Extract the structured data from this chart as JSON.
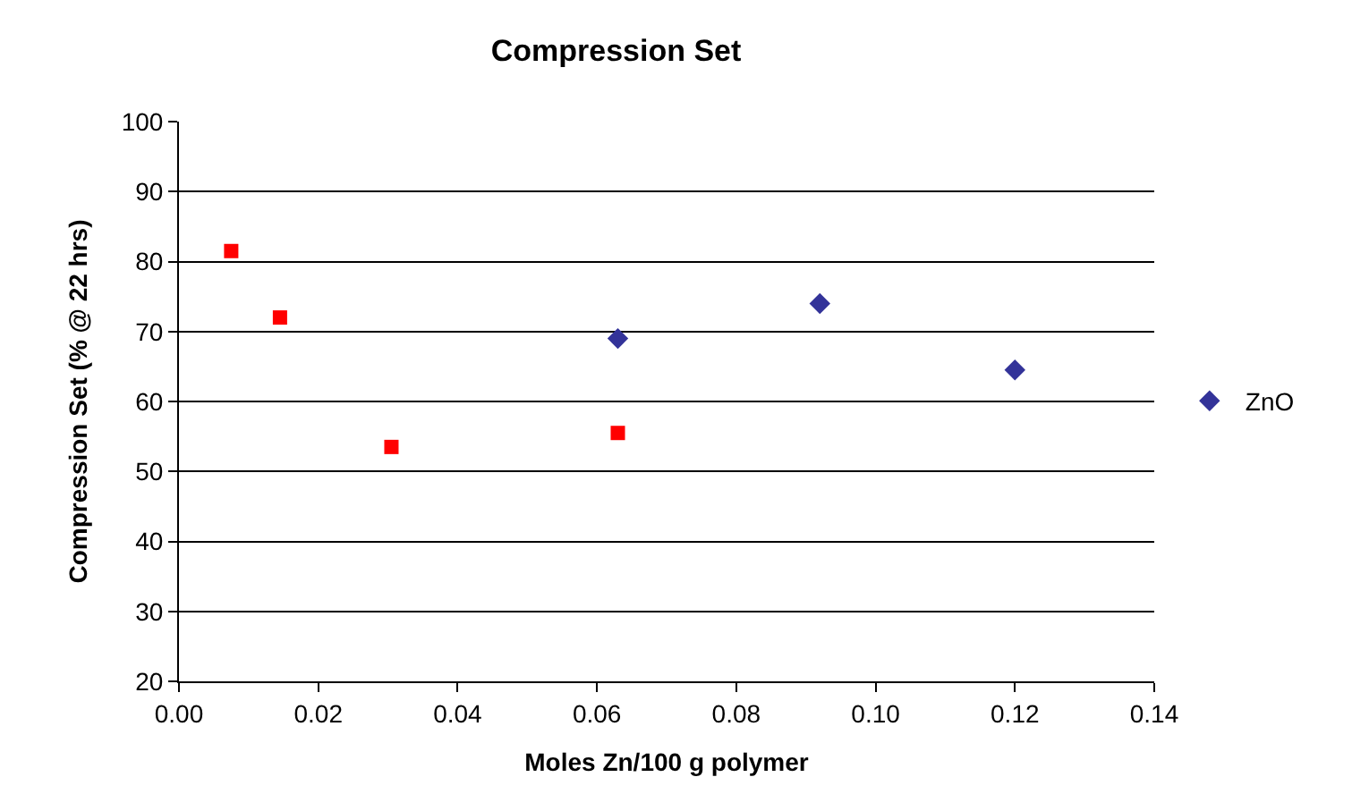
{
  "chart_data": {
    "type": "scatter",
    "title": "Compression Set",
    "xlabel": "Moles Zn/100 g polymer",
    "ylabel": "Compression Set (% @ 22 hrs)",
    "series": [
      {
        "color": "#ff0000",
        "marker": "square",
        "x": [
          0.0075,
          0.0145,
          0.0305,
          0.063
        ],
        "values": [
          81.5,
          72,
          53.5,
          55.5
        ]
      },
      {
        "name": "ZnO",
        "color": "#333399",
        "marker": "diamond",
        "x": [
          0.063,
          0.092,
          0.12
        ],
        "values": [
          69,
          74,
          64.5
        ]
      }
    ],
    "xlim": [
      0,
      0.14
    ],
    "xticks": [
      {
        "value": 0,
        "label": "0.00"
      },
      {
        "value": 0.02,
        "label": "0.02"
      },
      {
        "value": 0.04,
        "label": "0.04"
      },
      {
        "value": 0.06,
        "label": "0.06"
      },
      {
        "value": 0.08,
        "label": "0.08"
      },
      {
        "value": 0.1,
        "label": "0.10"
      },
      {
        "value": 0.12,
        "label": "0.12"
      },
      {
        "value": 0.14,
        "label": "0.14"
      }
    ],
    "ylim": [
      20,
      100
    ],
    "yticks": [
      20,
      30,
      40,
      50,
      60,
      70,
      80,
      90,
      100
    ],
    "grid": "y",
    "legend": "right"
  }
}
